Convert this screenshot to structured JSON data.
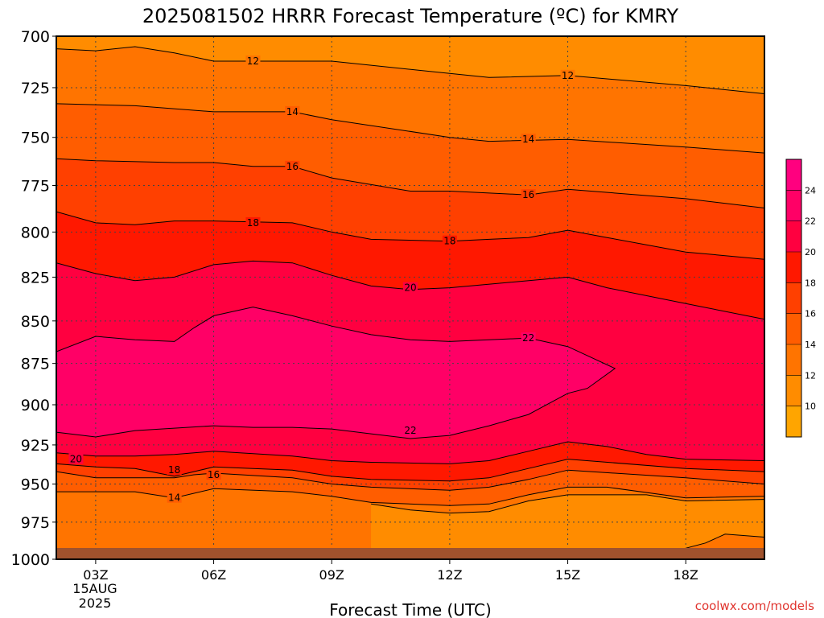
{
  "chart_data": {
    "type": "heatmap",
    "title": "2025081502 HRRR Forecast Temperature (ºC) for KMRY",
    "xlabel": "Forecast Time (UTC)",
    "ylabel": "",
    "credit": "coolwx.com/models",
    "x_ticks": [
      {
        "hour": 3,
        "label": "03Z"
      },
      {
        "hour": 6,
        "label": "06Z"
      },
      {
        "hour": 9,
        "label": "09Z"
      },
      {
        "hour": 12,
        "label": "12Z"
      },
      {
        "hour": 15,
        "label": "15Z"
      },
      {
        "hour": 18,
        "label": "18Z"
      }
    ],
    "x_date_line1": "15AUG",
    "x_date_line2": "2025",
    "xlim": [
      2,
      20
    ],
    "y_ticks": [
      700,
      725,
      750,
      775,
      800,
      825,
      850,
      875,
      900,
      925,
      950,
      975,
      1000
    ],
    "ylim": [
      1000,
      700
    ],
    "y_scale": "log",
    "grid": true,
    "colorbar": {
      "ticks": [
        10,
        12,
        14,
        16,
        18,
        20,
        22,
        24
      ],
      "range": [
        8,
        26
      ],
      "colors": [
        "#FFA500",
        "#FF8C00",
        "#FF7400",
        "#FF5D00",
        "#FF4000",
        "#FF1800",
        "#FF0040",
        "#FF0066",
        "#FF007F"
      ]
    },
    "ground_color": "#A0522D",
    "contours": [
      {
        "value": 12,
        "points": [
          [
            2,
            706
          ],
          [
            3,
            707
          ],
          [
            4,
            705
          ],
          [
            5,
            708
          ],
          [
            6,
            712
          ],
          [
            9,
            712
          ],
          [
            12,
            718
          ],
          [
            13,
            720
          ],
          [
            15,
            719
          ],
          [
            18,
            724
          ],
          [
            20,
            728
          ]
        ]
      },
      {
        "value": 14,
        "points": [
          [
            2,
            733
          ],
          [
            4,
            734
          ],
          [
            6,
            737
          ],
          [
            7,
            737
          ],
          [
            8,
            737
          ],
          [
            9,
            741
          ],
          [
            12,
            750
          ],
          [
            13,
            752
          ],
          [
            15,
            751
          ],
          [
            18,
            755
          ],
          [
            20,
            758
          ]
        ]
      },
      {
        "value": 16,
        "points": [
          [
            2,
            761
          ],
          [
            3,
            762
          ],
          [
            5,
            763
          ],
          [
            6,
            763
          ],
          [
            7,
            765
          ],
          [
            8,
            765
          ],
          [
            9,
            771
          ],
          [
            11,
            778
          ],
          [
            12,
            778
          ],
          [
            13,
            779
          ],
          [
            14,
            780
          ],
          [
            15,
            777
          ],
          [
            18,
            782
          ],
          [
            20,
            787
          ]
        ]
      },
      {
        "value": 18,
        "points": [
          [
            2,
            789
          ],
          [
            3,
            795
          ],
          [
            4,
            796
          ],
          [
            5,
            794
          ],
          [
            6,
            794
          ],
          [
            8,
            795
          ],
          [
            9,
            800
          ],
          [
            10,
            804
          ],
          [
            12,
            805
          ],
          [
            13,
            804
          ],
          [
            14,
            803
          ],
          [
            15,
            799
          ],
          [
            16,
            803
          ],
          [
            18,
            811
          ],
          [
            20,
            815
          ]
        ]
      },
      {
        "value": 20,
        "points": [
          [
            2,
            817
          ],
          [
            3,
            823
          ],
          [
            4,
            827
          ],
          [
            5,
            825
          ],
          [
            6,
            818
          ],
          [
            7,
            816
          ],
          [
            8,
            817
          ],
          [
            9,
            824
          ],
          [
            10,
            830
          ],
          [
            11,
            832
          ],
          [
            12,
            831
          ],
          [
            15,
            825
          ],
          [
            16,
            831
          ],
          [
            18,
            840
          ],
          [
            20,
            849
          ]
        ]
      },
      {
        "value": 22,
        "points": [
          [
            2,
            868
          ],
          [
            3,
            859
          ],
          [
            4,
            861
          ],
          [
            5,
            862
          ],
          [
            5.5,
            854
          ],
          [
            6,
            847
          ],
          [
            7,
            842
          ],
          [
            8,
            847
          ],
          [
            9,
            853
          ],
          [
            10,
            858
          ],
          [
            11,
            861
          ],
          [
            12,
            862
          ],
          [
            13,
            861
          ],
          [
            14,
            860
          ],
          [
            15,
            865
          ],
          [
            16.2,
            878
          ],
          [
            15.5,
            890
          ],
          [
            15,
            893
          ],
          [
            14,
            906
          ],
          [
            13,
            913
          ],
          [
            12,
            919
          ],
          [
            11,
            921
          ],
          [
            10,
            918
          ],
          [
            9,
            915
          ],
          [
            8,
            914
          ],
          [
            7,
            914
          ],
          [
            6,
            913
          ],
          [
            4,
            916
          ],
          [
            3,
            920
          ],
          [
            2,
            917
          ]
        ]
      },
      {
        "value": 20,
        "points": [
          [
            2,
            930
          ],
          [
            3,
            932
          ],
          [
            4,
            932
          ],
          [
            5,
            931
          ],
          [
            6,
            929
          ],
          [
            8,
            932
          ],
          [
            9,
            935
          ],
          [
            10,
            936
          ],
          [
            12,
            937
          ],
          [
            13,
            935
          ],
          [
            14,
            929
          ],
          [
            15,
            923
          ],
          [
            16,
            926
          ],
          [
            17,
            931
          ],
          [
            18,
            934
          ],
          [
            20,
            935
          ]
        ]
      },
      {
        "value": 18,
        "points": [
          [
            2,
            937
          ],
          [
            3,
            939
          ],
          [
            4,
            940
          ],
          [
            5,
            945
          ],
          [
            6,
            939
          ],
          [
            8,
            941
          ],
          [
            9,
            945
          ],
          [
            10,
            947
          ],
          [
            12,
            948
          ],
          [
            13,
            946
          ],
          [
            14,
            940
          ],
          [
            15,
            934
          ],
          [
            18,
            940
          ],
          [
            20,
            942
          ]
        ]
      },
      {
        "value": 16,
        "points": [
          [
            2,
            942
          ],
          [
            3,
            946
          ],
          [
            5,
            946
          ],
          [
            5.5,
            944
          ],
          [
            6,
            943
          ],
          [
            8,
            946
          ],
          [
            9,
            950
          ],
          [
            10,
            952
          ],
          [
            12,
            954
          ],
          [
            13,
            952
          ],
          [
            14,
            947
          ],
          [
            15,
            941
          ],
          [
            18,
            946
          ],
          [
            20,
            950
          ]
        ]
      },
      {
        "value": 14,
        "points": [
          [
            2,
            955
          ],
          [
            4,
            955
          ],
          [
            5,
            959
          ],
          [
            6,
            953
          ],
          [
            8,
            955
          ],
          [
            9,
            958
          ],
          [
            10,
            962
          ],
          [
            12,
            964
          ],
          [
            13,
            963
          ],
          [
            14,
            957
          ],
          [
            15,
            952
          ],
          [
            16,
            952
          ],
          [
            18,
            959
          ],
          [
            20,
            958
          ]
        ]
      },
      {
        "value": 12,
        "points": [
          [
            10,
            963
          ],
          [
            11,
            967
          ],
          [
            12,
            969
          ],
          [
            13,
            968
          ],
          [
            14,
            961
          ],
          [
            15,
            957
          ],
          [
            17,
            957
          ],
          [
            18,
            961
          ],
          [
            20,
            960
          ]
        ]
      },
      {
        "value": 12,
        "points": [
          [
            16.5,
            1000
          ],
          [
            17.5,
            996
          ],
          [
            18.5,
            989
          ],
          [
            19,
            983
          ],
          [
            20,
            985
          ]
        ]
      },
      {
        "value": 14,
        "points": [
          [
            18.5,
            1000
          ],
          [
            19,
            996
          ],
          [
            20,
            997
          ]
        ]
      }
    ],
    "contour_labels": [
      {
        "x": 7,
        "y": 712,
        "text": "12"
      },
      {
        "x": 15,
        "y": 719,
        "text": "12"
      },
      {
        "x": 8,
        "y": 737,
        "text": "14"
      },
      {
        "x": 14,
        "y": 751,
        "text": "14"
      },
      {
        "x": 8,
        "y": 765,
        "text": "16"
      },
      {
        "x": 14,
        "y": 780,
        "text": "16"
      },
      {
        "x": 7,
        "y": 795,
        "text": "18"
      },
      {
        "x": 12,
        "y": 805,
        "text": "18"
      },
      {
        "x": 11,
        "y": 831,
        "text": "20"
      },
      {
        "x": 14,
        "y": 860,
        "text": "22"
      },
      {
        "x": 11,
        "y": 916,
        "text": "22"
      },
      {
        "x": 2.5,
        "y": 934,
        "text": "20"
      },
      {
        "x": 5,
        "y": 941,
        "text": "18"
      },
      {
        "x": 6,
        "y": 944,
        "text": "16"
      },
      {
        "x": 5,
        "y": 959,
        "text": "14"
      }
    ],
    "bands": [
      {
        "min_t": 10,
        "lower": [
          [
            2,
            705
          ],
          [
            20,
            698
          ]
        ],
        "upper": [
          [
            2,
            706
          ],
          [
            3,
            707
          ],
          [
            4,
            705
          ],
          [
            5,
            708
          ],
          [
            6,
            712
          ],
          [
            9,
            712
          ],
          [
            12,
            718
          ],
          [
            13,
            720
          ],
          [
            15,
            719
          ],
          [
            18,
            724
          ],
          [
            20,
            728
          ]
        ]
      }
    ]
  }
}
